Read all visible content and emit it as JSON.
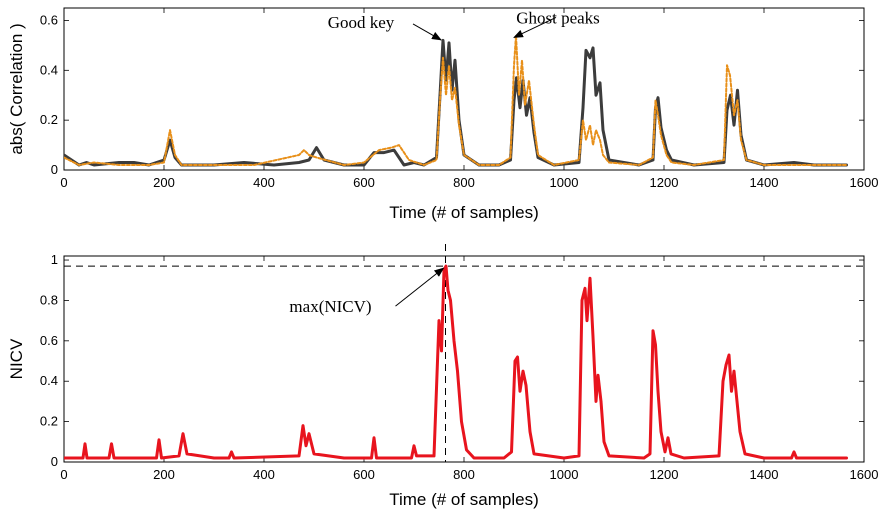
{
  "chart_data": [
    {
      "type": "line",
      "xlabel": "Time (# of samples)",
      "ylabel": "abs( Correlation )",
      "xlim": [
        0,
        1600
      ],
      "ylim": [
        0,
        0.65
      ],
      "xticks": [
        0,
        200,
        400,
        600,
        800,
        1000,
        1200,
        1400,
        1600
      ],
      "yticks": [
        0,
        0.2,
        0.4,
        0.6
      ],
      "xtick_labels": [
        "0",
        "200",
        "400",
        "600",
        "800",
        "1000",
        "1200",
        "1400",
        "1600"
      ],
      "ytick_labels": [
        "0",
        "0.2",
        "0.4",
        "0.6"
      ],
      "series": [
        {
          "color": "#3c3c3c",
          "style": "solid-thick",
          "points": [
            [
              0,
              0.06
            ],
            [
              30,
              0.02
            ],
            [
              45,
              0.03
            ],
            [
              60,
              0.02
            ],
            [
              110,
              0.03
            ],
            [
              140,
              0.03
            ],
            [
              170,
              0.02
            ],
            [
              200,
              0.04
            ],
            [
              212,
              0.12
            ],
            [
              222,
              0.05
            ],
            [
              235,
              0.02
            ],
            [
              300,
              0.02
            ],
            [
              360,
              0.03
            ],
            [
              420,
              0.02
            ],
            [
              470,
              0.03
            ],
            [
              490,
              0.04
            ],
            [
              505,
              0.09
            ],
            [
              520,
              0.04
            ],
            [
              560,
              0.02
            ],
            [
              600,
              0.02
            ],
            [
              620,
              0.07
            ],
            [
              640,
              0.07
            ],
            [
              660,
              0.08
            ],
            [
              680,
              0.02
            ],
            [
              700,
              0.03
            ],
            [
              720,
              0.02
            ],
            [
              745,
              0.05
            ],
            [
              752,
              0.3
            ],
            [
              758,
              0.52
            ],
            [
              764,
              0.36
            ],
            [
              770,
              0.51
            ],
            [
              776,
              0.32
            ],
            [
              782,
              0.44
            ],
            [
              790,
              0.2
            ],
            [
              800,
              0.06
            ],
            [
              830,
              0.02
            ],
            [
              870,
              0.02
            ],
            [
              893,
              0.04
            ],
            [
              900,
              0.28
            ],
            [
              905,
              0.37
            ],
            [
              912,
              0.25
            ],
            [
              918,
              0.36
            ],
            [
              925,
              0.22
            ],
            [
              932,
              0.29
            ],
            [
              940,
              0.15
            ],
            [
              948,
              0.05
            ],
            [
              980,
              0.02
            ],
            [
              1030,
              0.03
            ],
            [
              1038,
              0.25
            ],
            [
              1044,
              0.48
            ],
            [
              1052,
              0.45
            ],
            [
              1058,
              0.49
            ],
            [
              1064,
              0.3
            ],
            [
              1072,
              0.35
            ],
            [
              1078,
              0.16
            ],
            [
              1090,
              0.04
            ],
            [
              1150,
              0.02
            ],
            [
              1178,
              0.04
            ],
            [
              1183,
              0.25
            ],
            [
              1188,
              0.29
            ],
            [
              1194,
              0.17
            ],
            [
              1205,
              0.08
            ],
            [
              1215,
              0.04
            ],
            [
              1260,
              0.02
            ],
            [
              1320,
              0.03
            ],
            [
              1326,
              0.24
            ],
            [
              1333,
              0.3
            ],
            [
              1340,
              0.18
            ],
            [
              1347,
              0.32
            ],
            [
              1354,
              0.14
            ],
            [
              1365,
              0.04
            ],
            [
              1400,
              0.02
            ],
            [
              1460,
              0.03
            ],
            [
              1500,
              0.02
            ],
            [
              1565,
              0.02
            ]
          ]
        },
        {
          "color": "#e8901a",
          "style": "dotted",
          "points": [
            [
              0,
              0.05
            ],
            [
              30,
              0.02
            ],
            [
              60,
              0.03
            ],
            [
              110,
              0.02
            ],
            [
              170,
              0.02
            ],
            [
              200,
              0.03
            ],
            [
              212,
              0.16
            ],
            [
              222,
              0.06
            ],
            [
              235,
              0.02
            ],
            [
              300,
              0.02
            ],
            [
              380,
              0.02
            ],
            [
              470,
              0.06
            ],
            [
              480,
              0.08
            ],
            [
              490,
              0.06
            ],
            [
              505,
              0.05
            ],
            [
              560,
              0.02
            ],
            [
              600,
              0.03
            ],
            [
              630,
              0.08
            ],
            [
              655,
              0.09
            ],
            [
              670,
              0.1
            ],
            [
              690,
              0.04
            ],
            [
              720,
              0.02
            ],
            [
              745,
              0.04
            ],
            [
              752,
              0.28
            ],
            [
              758,
              0.45
            ],
            [
              764,
              0.3
            ],
            [
              770,
              0.42
            ],
            [
              776,
              0.28
            ],
            [
              782,
              0.33
            ],
            [
              790,
              0.18
            ],
            [
              800,
              0.06
            ],
            [
              830,
              0.02
            ],
            [
              870,
              0.02
            ],
            [
              893,
              0.05
            ],
            [
              900,
              0.42
            ],
            [
              904,
              0.54
            ],
            [
              910,
              0.3
            ],
            [
              916,
              0.44
            ],
            [
              922,
              0.26
            ],
            [
              930,
              0.36
            ],
            [
              940,
              0.18
            ],
            [
              948,
              0.06
            ],
            [
              980,
              0.02
            ],
            [
              1030,
              0.04
            ],
            [
              1038,
              0.2
            ],
            [
              1044,
              0.12
            ],
            [
              1052,
              0.18
            ],
            [
              1058,
              0.1
            ],
            [
              1064,
              0.16
            ],
            [
              1072,
              0.12
            ],
            [
              1078,
              0.06
            ],
            [
              1090,
              0.03
            ],
            [
              1150,
              0.02
            ],
            [
              1178,
              0.05
            ],
            [
              1183,
              0.28
            ],
            [
              1188,
              0.22
            ],
            [
              1194,
              0.14
            ],
            [
              1205,
              0.06
            ],
            [
              1215,
              0.03
            ],
            [
              1260,
              0.02
            ],
            [
              1320,
              0.04
            ],
            [
              1326,
              0.42
            ],
            [
              1332,
              0.38
            ],
            [
              1340,
              0.22
            ],
            [
              1347,
              0.28
            ],
            [
              1354,
              0.12
            ],
            [
              1365,
              0.04
            ],
            [
              1400,
              0.02
            ],
            [
              1460,
              0.02
            ],
            [
              1500,
              0.02
            ],
            [
              1565,
              0.02
            ]
          ]
        }
      ],
      "annotations": [
        {
          "text": "Good key",
          "x": 758,
          "y": 0.53
        },
        {
          "text": "Ghost peaks",
          "x": 904,
          "y": 0.54
        }
      ]
    },
    {
      "type": "line",
      "xlabel": "Time (# of samples)",
      "ylabel": "NICV",
      "xlim": [
        0,
        1600
      ],
      "ylim": [
        0,
        1.02
      ],
      "xticks": [
        0,
        200,
        400,
        600,
        800,
        1000,
        1200,
        1400,
        1600
      ],
      "yticks": [
        0,
        0.2,
        0.4,
        0.6,
        0.8,
        1
      ],
      "xtick_labels": [
        "0",
        "200",
        "400",
        "600",
        "800",
        "1000",
        "1200",
        "1400",
        "1600"
      ],
      "ytick_labels": [
        "0",
        "0.2",
        "0.4",
        "0.6",
        "0.8",
        "1"
      ],
      "reference_lines": {
        "hline_y": 0.97,
        "vline_x": 763
      },
      "series": [
        {
          "color": "#e8141e",
          "style": "solid-thick",
          "points": [
            [
              0,
              0.02
            ],
            [
              38,
              0.02
            ],
            [
              42,
              0.09
            ],
            [
              46,
              0.02
            ],
            [
              90,
              0.02
            ],
            [
              95,
              0.09
            ],
            [
              100,
              0.02
            ],
            [
              185,
              0.02
            ],
            [
              190,
              0.11
            ],
            [
              195,
              0.02
            ],
            [
              230,
              0.03
            ],
            [
              238,
              0.14
            ],
            [
              246,
              0.04
            ],
            [
              300,
              0.02
            ],
            [
              330,
              0.02
            ],
            [
              335,
              0.05
            ],
            [
              340,
              0.02
            ],
            [
              470,
              0.03
            ],
            [
              478,
              0.18
            ],
            [
              484,
              0.08
            ],
            [
              490,
              0.14
            ],
            [
              500,
              0.04
            ],
            [
              560,
              0.02
            ],
            [
              615,
              0.02
            ],
            [
              620,
              0.12
            ],
            [
              625,
              0.02
            ],
            [
              695,
              0.02
            ],
            [
              700,
              0.08
            ],
            [
              705,
              0.03
            ],
            [
              740,
              0.03
            ],
            [
              750,
              0.7
            ],
            [
              755,
              0.55
            ],
            [
              760,
              0.95
            ],
            [
              764,
              0.97
            ],
            [
              768,
              0.85
            ],
            [
              773,
              0.8
            ],
            [
              780,
              0.6
            ],
            [
              787,
              0.45
            ],
            [
              795,
              0.2
            ],
            [
              805,
              0.06
            ],
            [
              820,
              0.02
            ],
            [
              880,
              0.02
            ],
            [
              895,
              0.05
            ],
            [
              902,
              0.5
            ],
            [
              907,
              0.52
            ],
            [
              912,
              0.35
            ],
            [
              918,
              0.45
            ],
            [
              924,
              0.38
            ],
            [
              932,
              0.15
            ],
            [
              940,
              0.04
            ],
            [
              1000,
              0.02
            ],
            [
              1030,
              0.03
            ],
            [
              1036,
              0.8
            ],
            [
              1042,
              0.86
            ],
            [
              1046,
              0.7
            ],
            [
              1052,
              0.91
            ],
            [
              1058,
              0.62
            ],
            [
              1064,
              0.3
            ],
            [
              1068,
              0.43
            ],
            [
              1074,
              0.3
            ],
            [
              1080,
              0.1
            ],
            [
              1090,
              0.03
            ],
            [
              1160,
              0.02
            ],
            [
              1172,
              0.04
            ],
            [
              1178,
              0.65
            ],
            [
              1183,
              0.58
            ],
            [
              1188,
              0.35
            ],
            [
              1194,
              0.15
            ],
            [
              1202,
              0.05
            ],
            [
              1208,
              0.12
            ],
            [
              1214,
              0.04
            ],
            [
              1240,
              0.02
            ],
            [
              1310,
              0.03
            ],
            [
              1318,
              0.4
            ],
            [
              1324,
              0.48
            ],
            [
              1330,
              0.53
            ],
            [
              1335,
              0.35
            ],
            [
              1340,
              0.45
            ],
            [
              1346,
              0.3
            ],
            [
              1352,
              0.15
            ],
            [
              1362,
              0.04
            ],
            [
              1400,
              0.02
            ],
            [
              1455,
              0.02
            ],
            [
              1460,
              0.05
            ],
            [
              1465,
              0.02
            ],
            [
              1565,
              0.02
            ]
          ]
        }
      ],
      "annotations": [
        {
          "text": "max(NICV)",
          "x": 763,
          "y": 0.97
        }
      ]
    }
  ]
}
